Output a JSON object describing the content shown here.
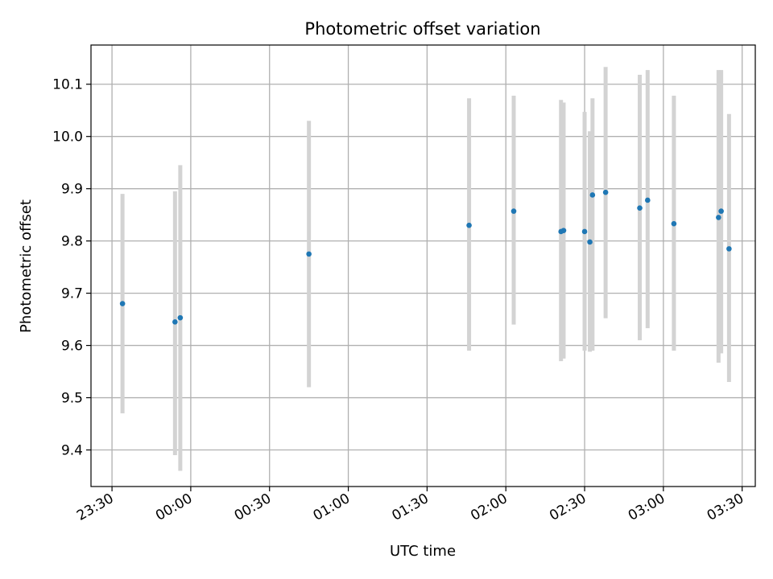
{
  "chart_data": {
    "type": "scatter",
    "title": "Photometric offset variation",
    "xlabel": "UTC time",
    "ylabel": "Photometric offset",
    "x_ticks": [
      "23:30",
      "00:00",
      "00:30",
      "01:00",
      "01:30",
      "02:00",
      "02:30",
      "03:00",
      "03:30"
    ],
    "y_ticks": [
      "9.4",
      "9.5",
      "9.6",
      "9.7",
      "9.8",
      "9.9",
      "10.0",
      "10.1"
    ],
    "xlim": [
      "23:22",
      "03:35"
    ],
    "ylim": [
      9.33,
      10.175
    ],
    "grid": true,
    "marker_color": "#1f77b4",
    "errorbar_color": "#d3d3d3",
    "points": [
      {
        "x": "23:34",
        "y": 9.68,
        "ylow": 9.47,
        "yhigh": 9.89
      },
      {
        "x": "23:54",
        "y": 9.645,
        "ylow": 9.39,
        "yhigh": 9.895
      },
      {
        "x": "23:56",
        "y": 9.653,
        "ylow": 9.36,
        "yhigh": 9.945
      },
      {
        "x": "00:45",
        "y": 9.775,
        "ylow": 9.52,
        "yhigh": 10.03
      },
      {
        "x": "01:46",
        "y": 9.83,
        "ylow": 9.59,
        "yhigh": 10.073
      },
      {
        "x": "02:03",
        "y": 9.857,
        "ylow": 9.64,
        "yhigh": 10.078
      },
      {
        "x": "02:21",
        "y": 9.818,
        "ylow": 9.57,
        "yhigh": 10.07
      },
      {
        "x": "02:22",
        "y": 9.82,
        "ylow": 9.575,
        "yhigh": 10.065
      },
      {
        "x": "02:30",
        "y": 9.818,
        "ylow": 9.59,
        "yhigh": 10.047
      },
      {
        "x": "02:32",
        "y": 9.798,
        "ylow": 9.588,
        "yhigh": 10.01
      },
      {
        "x": "02:33",
        "y": 9.888,
        "ylow": 9.59,
        "yhigh": 10.073
      },
      {
        "x": "02:38",
        "y": 9.893,
        "ylow": 9.652,
        "yhigh": 10.133
      },
      {
        "x": "02:51",
        "y": 9.863,
        "ylow": 9.61,
        "yhigh": 10.118
      },
      {
        "x": "02:54",
        "y": 9.878,
        "ylow": 9.633,
        "yhigh": 10.127
      },
      {
        "x": "03:04",
        "y": 9.833,
        "ylow": 9.59,
        "yhigh": 10.078
      },
      {
        "x": "03:21",
        "y": 9.845,
        "ylow": 9.567,
        "yhigh": 10.127
      },
      {
        "x": "03:22",
        "y": 9.857,
        "ylow": 9.585,
        "yhigh": 10.127
      },
      {
        "x": "03:25",
        "y": 9.785,
        "ylow": 9.53,
        "yhigh": 10.043
      }
    ]
  }
}
